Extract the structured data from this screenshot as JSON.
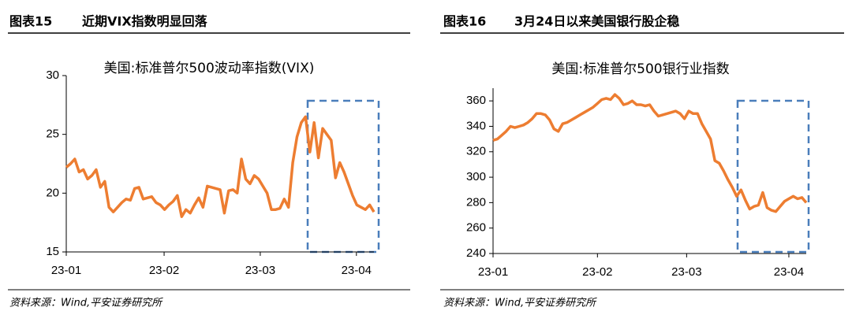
{
  "figures": [
    {
      "label": "图表15",
      "caption": "近期VIX指数明显回落",
      "source": "资料来源：Wind,平安证券研究所"
    },
    {
      "label": "图表16",
      "caption": "3月24日以来美国银行股企稳",
      "source": "资料来源：Wind,平安证券研究所"
    }
  ],
  "chart_data": [
    {
      "type": "line",
      "title": "美国:标准普尔500波动率指数(VIX)",
      "color": "#ed7d31",
      "values": [
        22.2,
        22.5,
        22.9,
        21.8,
        22.0,
        21.2,
        21.5,
        22.0,
        20.5,
        21.0,
        18.8,
        18.4,
        18.8,
        19.2,
        19.5,
        19.4,
        20.4,
        20.5,
        19.5,
        19.6,
        19.7,
        19.2,
        19.0,
        18.6,
        19.0,
        19.3,
        19.8,
        18.0,
        18.6,
        18.3,
        19.0,
        19.6,
        18.8,
        20.6,
        20.5,
        20.4,
        20.3,
        18.3,
        20.2,
        20.3,
        20.0,
        22.9,
        21.2,
        20.8,
        21.5,
        21.2,
        20.6,
        20.0,
        18.6,
        18.6,
        18.7,
        19.5,
        18.8,
        22.6,
        24.8,
        26.0,
        26.5,
        23.5,
        26.0,
        23.0,
        25.5,
        25.0,
        24.5,
        21.3,
        22.6,
        21.8,
        20.8,
        19.8,
        19.0,
        18.8,
        18.6,
        19.0,
        18.4
      ],
      "xlim": [
        0,
        72
      ],
      "xticks": [
        {
          "value": 0,
          "label": "23-01"
        },
        {
          "value": 22.9,
          "label": "23-02"
        },
        {
          "value": 45.4,
          "label": "23-03"
        },
        {
          "value": 67.9,
          "label": "23-04"
        }
      ],
      "ylim": [
        15,
        30
      ],
      "yticks": [
        15,
        20,
        25,
        30
      ]
    },
    {
      "type": "line",
      "title": "美国:标准普尔500银行业指数",
      "color": "#ed7d31",
      "values": [
        329,
        330,
        333,
        336,
        340,
        339,
        340,
        341,
        343,
        346,
        350,
        350,
        349,
        345,
        338,
        336,
        342,
        343,
        345,
        347,
        349,
        351,
        353,
        355,
        358,
        361,
        362,
        361,
        365,
        362,
        357,
        358,
        360,
        357,
        357,
        356,
        357,
        352,
        348,
        349,
        350,
        351,
        352,
        350,
        346,
        352,
        350,
        350,
        342,
        336,
        330,
        313,
        311,
        305,
        298,
        292,
        285,
        290,
        282,
        275,
        277,
        278,
        288,
        276,
        274,
        273,
        277,
        281,
        283,
        285,
        283,
        284,
        280
      ],
      "xlim": [
        0,
        72
      ],
      "xticks": [
        {
          "value": 0,
          "label": "23-01"
        },
        {
          "value": 24,
          "label": "23-02"
        },
        {
          "value": 44.5,
          "label": "23-03"
        },
        {
          "value": 68,
          "label": "23-04"
        }
      ],
      "ylim": [
        240,
        370
      ],
      "yticks": [
        240,
        260,
        280,
        300,
        320,
        340,
        360
      ]
    }
  ]
}
